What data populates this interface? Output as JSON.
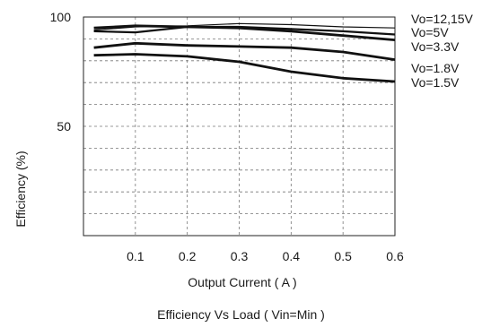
{
  "chart_data": {
    "type": "line",
    "title": "Efficiency  Vs Load ( Vin=Min )",
    "xlabel": "Output Current ( A )",
    "ylabel": "Efficiency (%)",
    "xlim": [
      0,
      0.6
    ],
    "ylim": [
      0,
      100
    ],
    "x_ticks": [
      "0.1",
      "0.2",
      "0.3",
      "0.4",
      "0.5",
      "0.6"
    ],
    "y_ticks": [
      "100",
      "50"
    ],
    "grid": true,
    "series": [
      {
        "name": "Vo=12,15V",
        "x": [
          0.02,
          0.1,
          0.2,
          0.3,
          0.4,
          0.5,
          0.6
        ],
        "y": [
          94,
          95.5,
          96,
          97,
          96.5,
          95.5,
          95
        ]
      },
      {
        "name": "Vo=5V",
        "x": [
          0.02,
          0.1,
          0.2,
          0.3,
          0.4,
          0.5,
          0.6
        ],
        "y": [
          93.5,
          93,
          95.5,
          95.5,
          94.5,
          93.5,
          92
        ]
      },
      {
        "name": "Vo=3.3V",
        "x": [
          0.02,
          0.1,
          0.2,
          0.3,
          0.4,
          0.5,
          0.6
        ],
        "y": [
          95,
          96,
          95.5,
          95,
          93.5,
          91.5,
          89.5
        ]
      },
      {
        "name": "Vo=1.8V",
        "x": [
          0.02,
          0.1,
          0.2,
          0.3,
          0.4,
          0.5,
          0.6
        ],
        "y": [
          86,
          88,
          87,
          86.5,
          86,
          84,
          80.5
        ]
      },
      {
        "name": "Vo=1.5V",
        "x": [
          0.02,
          0.1,
          0.2,
          0.3,
          0.4,
          0.5,
          0.6
        ],
        "y": [
          82.5,
          83,
          82,
          79.5,
          75,
          72,
          70.5
        ]
      }
    ]
  }
}
